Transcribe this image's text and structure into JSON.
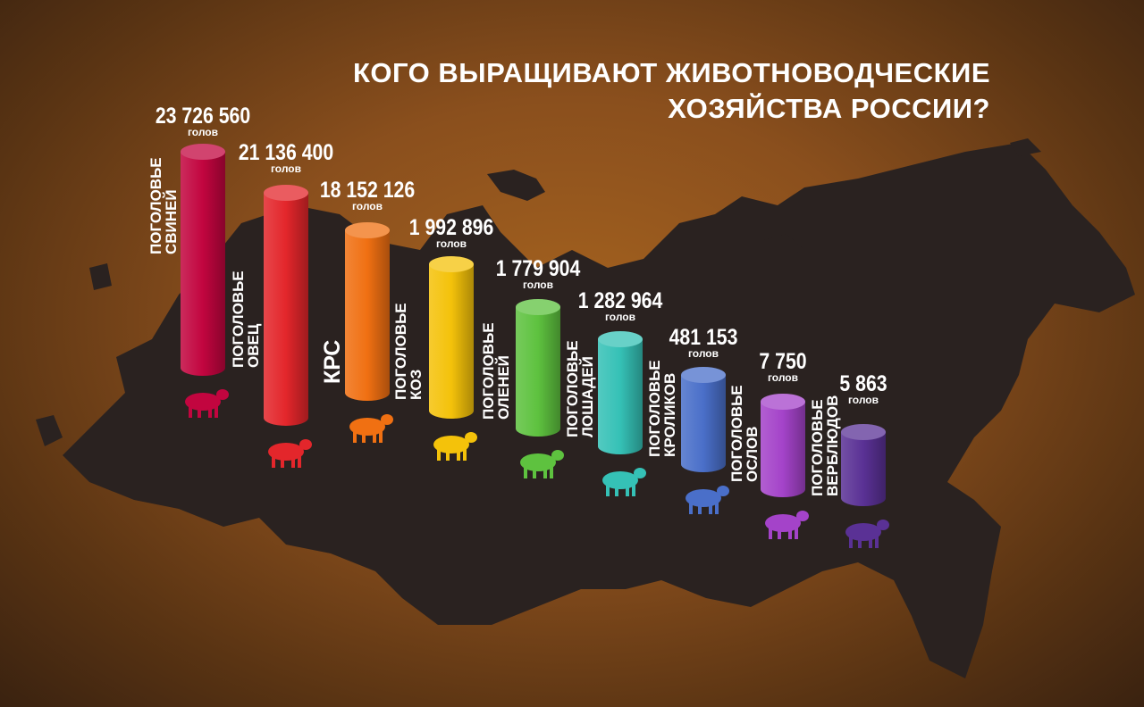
{
  "chart_data": {
    "type": "bar",
    "title": "КОГО ВЫРАЩИВАЮТ ЖИВОТНОВОДЧЕСКИЕ ХОЗЯЙСТВА РОССИИ?",
    "title_lines": [
      "КОГО ВЫРАЩИВАЮТ ЖИВОТНОВОДЧЕСКИЕ",
      "ХОЗЯЙСТВА РОССИИ?"
    ],
    "unit": "голов",
    "categories": [
      "ПОГОЛОВЬЕ СВИНЕЙ",
      "ПОГОЛОВЬЕ ОВЕЦ",
      "КРС",
      "ПОГОЛОВЬЕ КОЗ",
      "ПОГОЛОВЬЕ ОЛЕНЕЙ",
      "ПОГОЛОВЬЕ ЛОШАДЕЙ",
      "ПОГОЛОВЬЕ КРОЛИКОВ",
      "ПОГОЛОВЬЕ ОСЛОВ",
      "ПОГОЛОВЬЕ ВЕРБЛЮДОВ"
    ],
    "items": [
      {
        "label1": "ПОГОЛОВЬЕ",
        "label2": "СВИНЕЙ",
        "value": 23726560,
        "value_text": "23 726 560",
        "color": "#c2053f",
        "icon": "pig-icon"
      },
      {
        "label1": "ПОГОЛОВЬЕ",
        "label2": "ОВЕЦ",
        "value": 21136400,
        "value_text": "21 136 400",
        "color": "#e3262b",
        "icon": "sheep-icon"
      },
      {
        "label1": "КРС",
        "label2": "",
        "value": 18152126,
        "value_text": "18 152 126",
        "color": "#f07012",
        "icon": "cow-icon"
      },
      {
        "label1": "ПОГОЛОВЬЕ",
        "label2": "КОЗ",
        "value": 1992896,
        "value_text": "1 992 896",
        "color": "#f4c20a",
        "icon": "goat-icon"
      },
      {
        "label1": "ПОГОЛОВЬЕ",
        "label2": "ОЛЕНЕЙ",
        "value": 1779904,
        "value_text": "1 779 904",
        "color": "#5ec23f",
        "icon": "deer-icon"
      },
      {
        "label1": "ПОГОЛОВЬЕ",
        "label2": "ЛОШАДЕЙ",
        "value": 1282964,
        "value_text": "1 282 964",
        "color": "#35c1b6",
        "icon": "horse-icon"
      },
      {
        "label1": "ПОГОЛОВЬЕ",
        "label2": "КРОЛИКОВ",
        "value": 481153,
        "value_text": "481 153",
        "color": "#4a6fc9",
        "icon": "rabbit-icon"
      },
      {
        "label1": "ПОГОЛОВЬЕ",
        "label2": "ОСЛОВ",
        "value": 7750,
        "value_text": "7 750",
        "color": "#a443c9",
        "icon": "donkey-icon"
      },
      {
        "label1": "ПОГОЛОВЬЕ",
        "label2": "ВЕРБЛЮДОВ",
        "value": 5863,
        "value_text": "5 863",
        "color": "#5a3195",
        "icon": "camel-icon"
      }
    ]
  }
}
